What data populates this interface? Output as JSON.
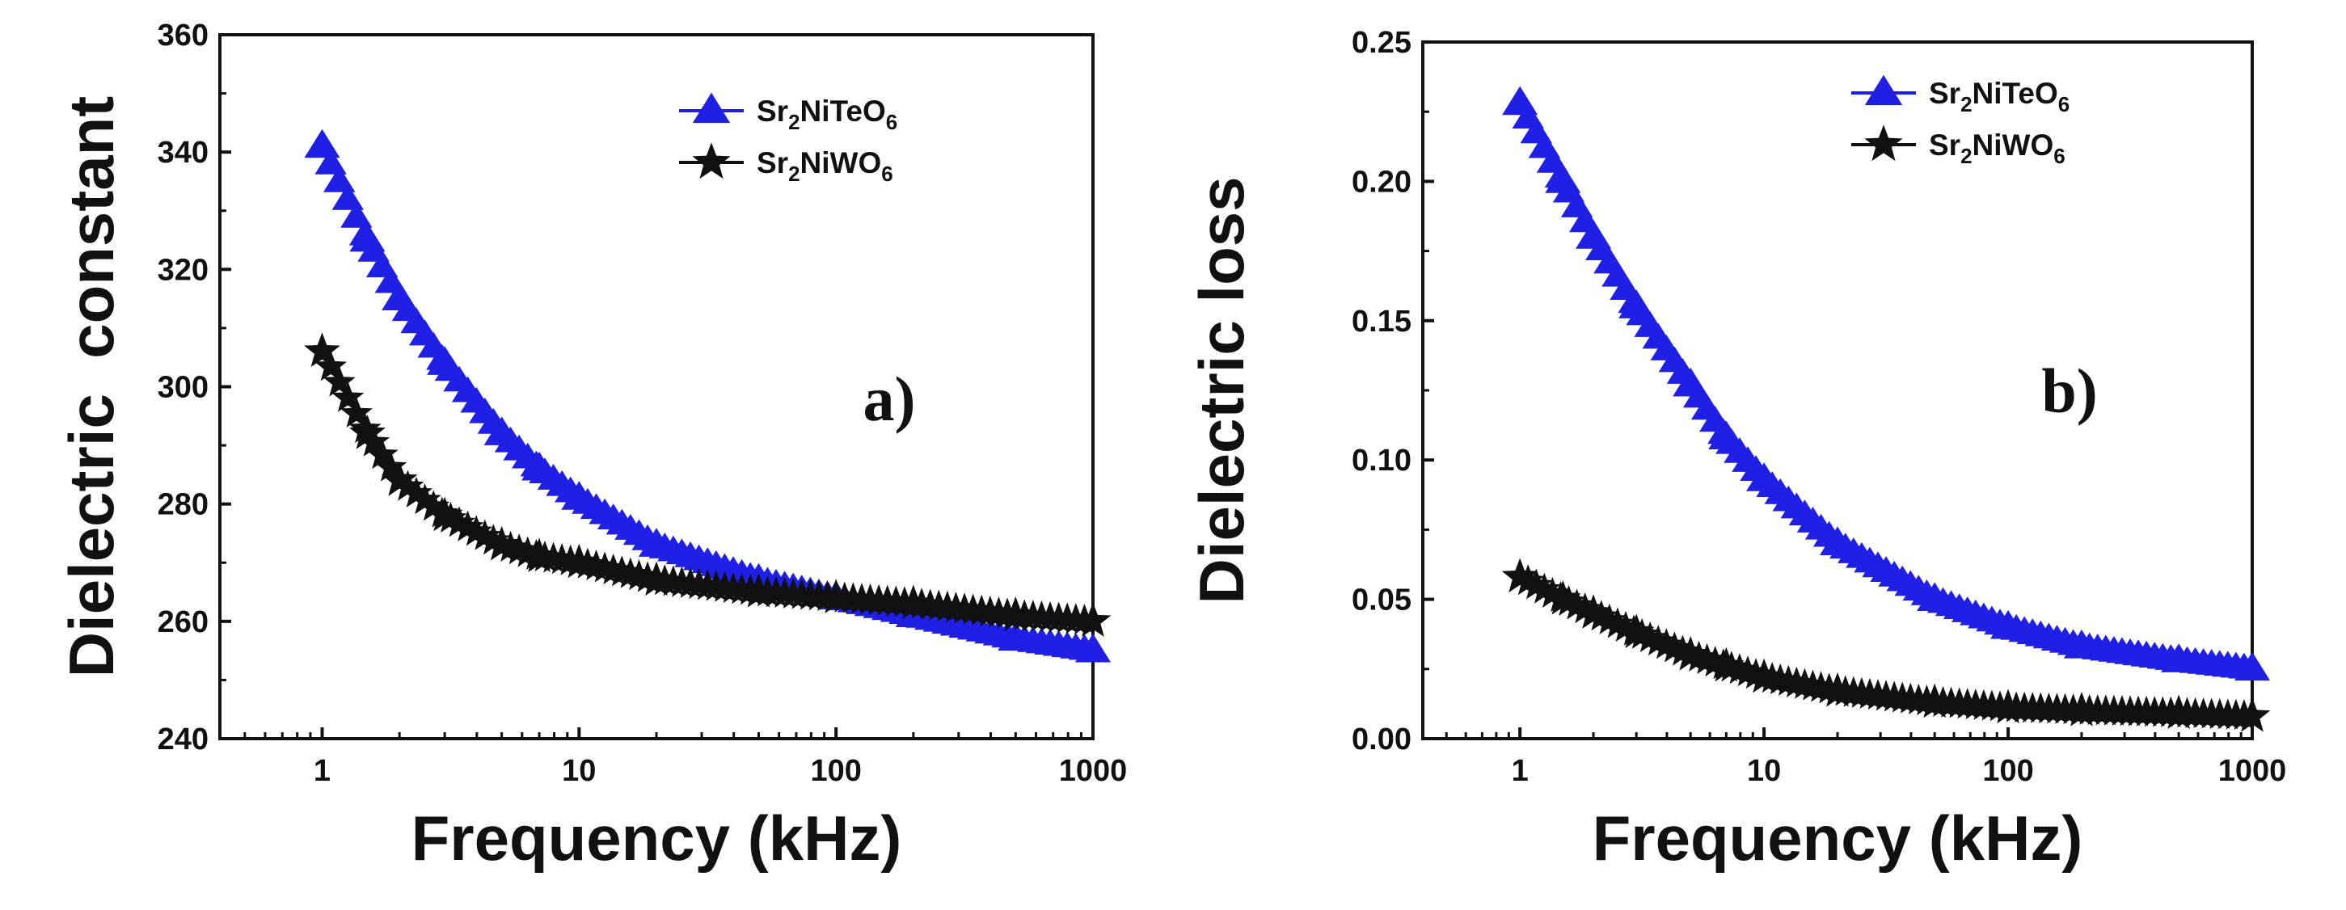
{
  "chart_data": [
    {
      "type": "scatter",
      "panel_label": "a)",
      "xlabel": "Frequency (kHz)",
      "ylabel": "Dielectric  constant",
      "xscale": "log",
      "xlim": [
        0.4,
        1000
      ],
      "ylim": [
        240,
        360
      ],
      "x_ticks": [
        1,
        10,
        100,
        1000
      ],
      "x_tick_labels": [
        "1",
        "10",
        "100",
        "1000"
      ],
      "y_ticks": [
        240,
        260,
        280,
        300,
        320,
        340,
        360
      ],
      "y_tick_labels": [
        "240",
        "260",
        "280",
        "300",
        "320",
        "340",
        "360"
      ],
      "legend_position": "top-right",
      "series": [
        {
          "name": "Sr2NiTeO6",
          "label_parts": [
            "Sr",
            "2",
            "NiTeO",
            "6"
          ],
          "marker": "triangle",
          "color": "#1f1fe6",
          "x": [
            1,
            1.5,
            2,
            3,
            5,
            7,
            10,
            20,
            50,
            100,
            200,
            500,
            1000
          ],
          "y": [
            341,
            325,
            315,
            304,
            292,
            286,
            281,
            273,
            267,
            264,
            261,
            257,
            255
          ]
        },
        {
          "name": "Sr2NiWO6",
          "label_parts": [
            "Sr",
            "2",
            "NiWO",
            "6"
          ],
          "marker": "star",
          "color": "#111111",
          "x": [
            1,
            1.5,
            2,
            3,
            5,
            7,
            10,
            20,
            50,
            100,
            200,
            500,
            1000
          ],
          "y": [
            306,
            292,
            284,
            278,
            273,
            271,
            270,
            267,
            265,
            264,
            263,
            261,
            260
          ]
        }
      ]
    },
    {
      "type": "scatter",
      "panel_label": "b)",
      "xlabel": "Frequency (kHz)",
      "ylabel": "Dielectric loss",
      "xscale": "log",
      "xlim": [
        0.4,
        1000
      ],
      "ylim": [
        0,
        0.25
      ],
      "x_ticks": [
        1,
        10,
        100,
        1000
      ],
      "x_tick_labels": [
        "1",
        "10",
        "100",
        "1000"
      ],
      "y_ticks": [
        0,
        0.05,
        0.1,
        0.15,
        0.2,
        0.25
      ],
      "y_tick_labels": [
        "0.00",
        "0.05",
        "0.10",
        "0.15",
        "0.20",
        "0.25"
      ],
      "legend_position": "top-right",
      "series": [
        {
          "name": "Sr2NiTeO6",
          "label_parts": [
            "Sr",
            "2",
            "NiTeO",
            "6"
          ],
          "marker": "triangle",
          "color": "#1f1fe6",
          "x": [
            1,
            1.5,
            2,
            3,
            5,
            7,
            10,
            20,
            50,
            100,
            200,
            500,
            1000
          ],
          "y": [
            0.228,
            0.2,
            0.18,
            0.155,
            0.127,
            0.108,
            0.093,
            0.07,
            0.05,
            0.04,
            0.033,
            0.028,
            0.025
          ]
        },
        {
          "name": "Sr2NiWO6",
          "label_parts": [
            "Sr",
            "2",
            "NiWO",
            "6"
          ],
          "marker": "star",
          "color": "#111111",
          "x": [
            1,
            1.5,
            2,
            3,
            5,
            7,
            10,
            20,
            50,
            100,
            200,
            500,
            1000
          ],
          "y": [
            0.058,
            0.05,
            0.045,
            0.038,
            0.03,
            0.026,
            0.022,
            0.017,
            0.013,
            0.011,
            0.01,
            0.009,
            0.008
          ]
        }
      ]
    }
  ]
}
